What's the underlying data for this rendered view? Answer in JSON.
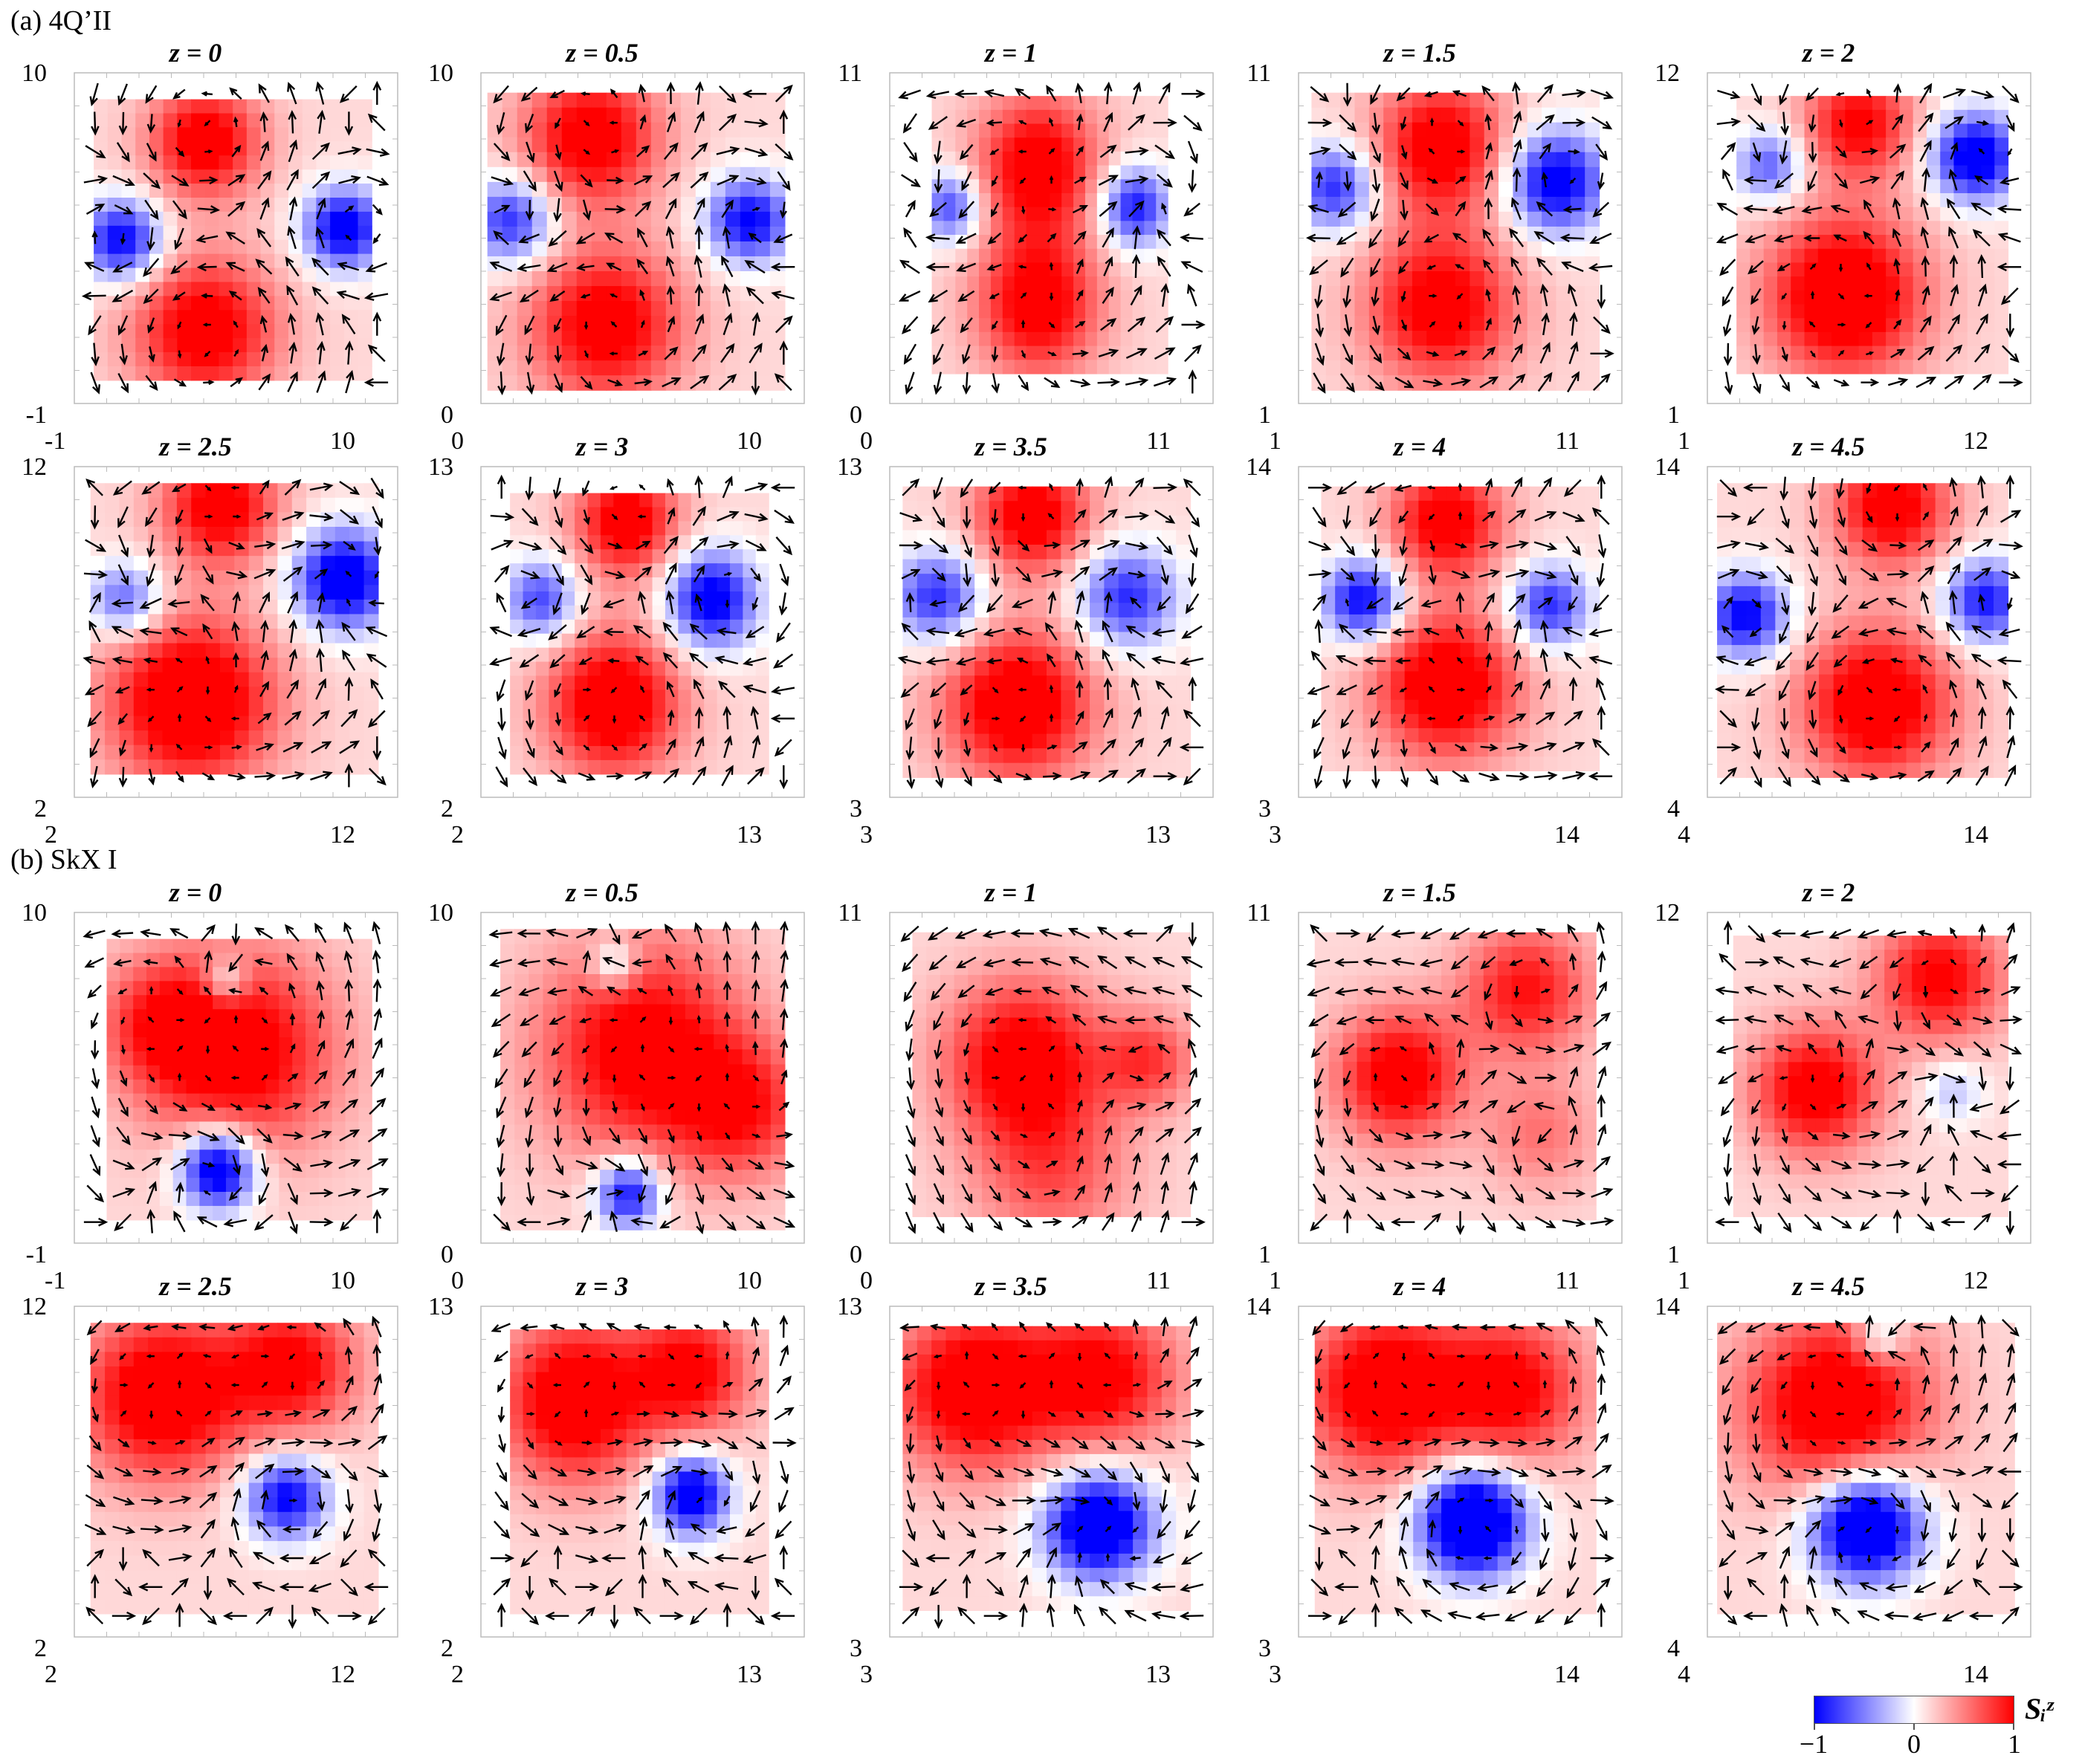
{
  "sections": [
    {
      "label": "(a) 4Q’II"
    },
    {
      "label": "(b) SkX I"
    }
  ],
  "colorbar": {
    "title": "Sᵢᶻ",
    "ticks": [
      "−1",
      "0",
      "1"
    ],
    "range": [
      -1,
      1
    ],
    "colors": {
      "low": "#0000ff",
      "mid": "#ffffff",
      "high": "#ff0000"
    }
  },
  "chart_data": [
    {
      "type": "heatmap",
      "section": "a",
      "title": "z = 0",
      "xlim": [
        -1,
        10
      ],
      "ylim": [
        -1,
        10
      ],
      "xticklabels": [
        "-1",
        "10"
      ],
      "yticklabels": [
        "-1",
        "10"
      ]
    },
    {
      "type": "heatmap",
      "section": "a",
      "title": "z = 0.5",
      "xlim": [
        0,
        10
      ],
      "ylim": [
        0,
        10
      ],
      "xticklabels": [
        "0",
        "10"
      ],
      "yticklabels": [
        "0",
        "10"
      ]
    },
    {
      "type": "heatmap",
      "section": "a",
      "title": "z = 1",
      "xlim": [
        0,
        11
      ],
      "ylim": [
        0,
        11
      ],
      "xticklabels": [
        "0",
        "11"
      ],
      "yticklabels": [
        "0",
        "11"
      ]
    },
    {
      "type": "heatmap",
      "section": "a",
      "title": "z = 1.5",
      "xlim": [
        1,
        11
      ],
      "ylim": [
        1,
        11
      ],
      "xticklabels": [
        "1",
        "11"
      ],
      "yticklabels": [
        "1",
        "11"
      ]
    },
    {
      "type": "heatmap",
      "section": "a",
      "title": "z = 2",
      "xlim": [
        1,
        12
      ],
      "ylim": [
        1,
        12
      ],
      "xticklabels": [
        "1",
        "12"
      ],
      "yticklabels": [
        "1",
        "12"
      ]
    },
    {
      "type": "heatmap",
      "section": "a",
      "title": "z = 2.5",
      "xlim": [
        2,
        12
      ],
      "ylim": [
        2,
        12
      ],
      "xticklabels": [
        "2",
        "12"
      ],
      "yticklabels": [
        "2",
        "12"
      ]
    },
    {
      "type": "heatmap",
      "section": "a",
      "title": "z = 3",
      "xlim": [
        2,
        13
      ],
      "ylim": [
        2,
        13
      ],
      "xticklabels": [
        "2",
        "13"
      ],
      "yticklabels": [
        "2",
        "13"
      ]
    },
    {
      "type": "heatmap",
      "section": "a",
      "title": "z = 3.5",
      "xlim": [
        3,
        13
      ],
      "ylim": [
        3,
        13
      ],
      "xticklabels": [
        "3",
        "13"
      ],
      "yticklabels": [
        "3",
        "13"
      ]
    },
    {
      "type": "heatmap",
      "section": "a",
      "title": "z = 4",
      "xlim": [
        3,
        14
      ],
      "ylim": [
        3,
        14
      ],
      "xticklabels": [
        "3",
        "14"
      ],
      "yticklabels": [
        "3",
        "14"
      ]
    },
    {
      "type": "heatmap",
      "section": "a",
      "title": "z = 4.5",
      "xlim": [
        4,
        14
      ],
      "ylim": [
        4,
        14
      ],
      "xticklabels": [
        "4",
        "14"
      ],
      "yticklabels": [
        "4",
        "14"
      ]
    },
    {
      "type": "heatmap",
      "section": "b",
      "title": "z = 0",
      "xlim": [
        -1,
        10
      ],
      "ylim": [
        -1,
        10
      ],
      "xticklabels": [
        "-1",
        "10"
      ],
      "yticklabels": [
        "-1",
        "10"
      ]
    },
    {
      "type": "heatmap",
      "section": "b",
      "title": "z = 0.5",
      "xlim": [
        0,
        10
      ],
      "ylim": [
        0,
        10
      ],
      "xticklabels": [
        "0",
        "10"
      ],
      "yticklabels": [
        "0",
        "10"
      ]
    },
    {
      "type": "heatmap",
      "section": "b",
      "title": "z = 1",
      "xlim": [
        0,
        11
      ],
      "ylim": [
        0,
        11
      ],
      "xticklabels": [
        "0",
        "11"
      ],
      "yticklabels": [
        "0",
        "11"
      ]
    },
    {
      "type": "heatmap",
      "section": "b",
      "title": "z = 1.5",
      "xlim": [
        1,
        11
      ],
      "ylim": [
        1,
        11
      ],
      "xticklabels": [
        "1",
        "11"
      ],
      "yticklabels": [
        "1",
        "11"
      ]
    },
    {
      "type": "heatmap",
      "section": "b",
      "title": "z = 2",
      "xlim": [
        1,
        12
      ],
      "ylim": [
        1,
        12
      ],
      "xticklabels": [
        "1",
        "12"
      ],
      "yticklabels": [
        "1",
        "12"
      ]
    },
    {
      "type": "heatmap",
      "section": "b",
      "title": "z = 2.5",
      "xlim": [
        2,
        12
      ],
      "ylim": [
        2,
        12
      ],
      "xticklabels": [
        "2",
        "12"
      ],
      "yticklabels": [
        "2",
        "12"
      ]
    },
    {
      "type": "heatmap",
      "section": "b",
      "title": "z = 3",
      "xlim": [
        2,
        13
      ],
      "ylim": [
        2,
        13
      ],
      "xticklabels": [
        "2",
        "13"
      ],
      "yticklabels": [
        "2",
        "13"
      ]
    },
    {
      "type": "heatmap",
      "section": "b",
      "title": "z = 3.5",
      "xlim": [
        3,
        13
      ],
      "ylim": [
        3,
        13
      ],
      "xticklabels": [
        "3",
        "13"
      ],
      "yticklabels": [
        "3",
        "13"
      ]
    },
    {
      "type": "heatmap",
      "section": "b",
      "title": "z = 4",
      "xlim": [
        3,
        14
      ],
      "ylim": [
        3,
        14
      ],
      "xticklabels": [
        "3",
        "14"
      ],
      "yticklabels": [
        "3",
        "14"
      ]
    },
    {
      "type": "heatmap",
      "section": "b",
      "title": "z = 4.5",
      "xlim": [
        4,
        14
      ],
      "ylim": [
        4,
        14
      ],
      "xticklabels": [
        "4",
        "14"
      ],
      "yticklabels": [
        "4",
        "14"
      ]
    }
  ]
}
